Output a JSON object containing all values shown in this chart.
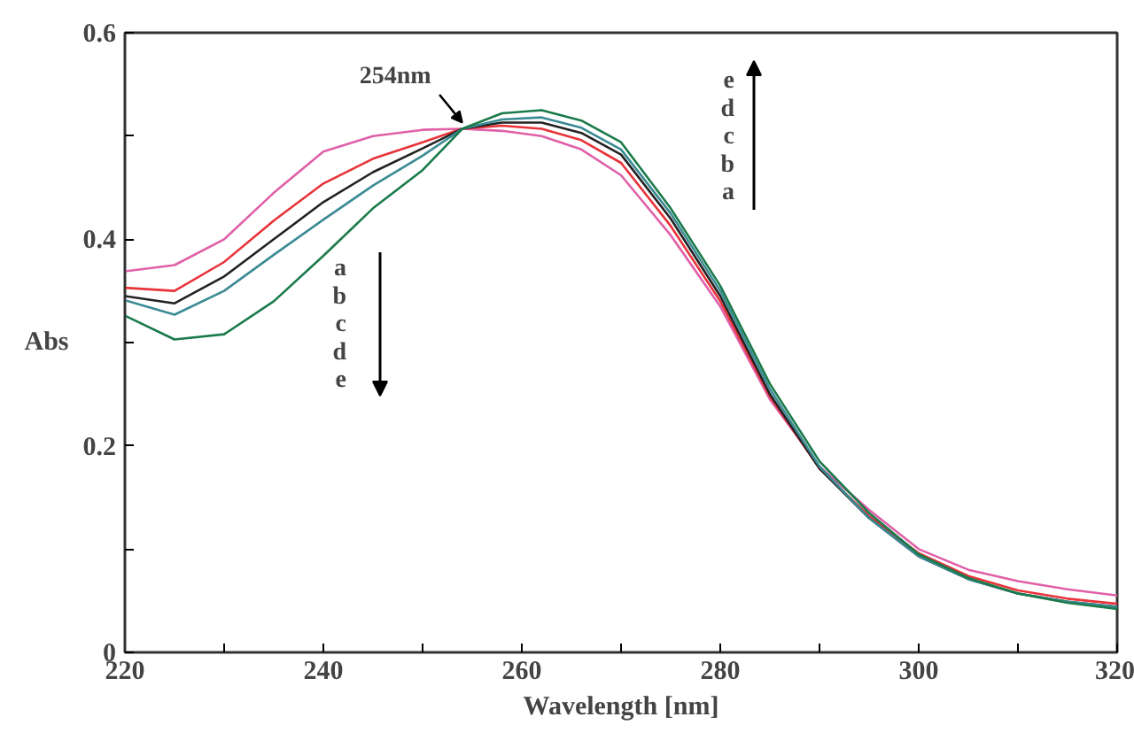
{
  "chart_data": {
    "type": "line",
    "xlabel": "Wavelength [nm]",
    "ylabel": "Abs",
    "x": [
      220,
      225,
      230,
      235,
      240,
      245,
      250,
      254,
      258,
      262,
      266,
      270,
      275,
      280,
      285,
      290,
      295,
      300,
      305,
      310,
      315,
      320
    ],
    "series": [
      {
        "color": "#e060a8",
        "values": [
          0.369,
          0.375,
          0.4,
          0.445,
          0.485,
          0.5,
          0.506,
          0.507,
          0.505,
          0.5,
          0.487,
          0.462,
          0.404,
          0.335,
          0.245,
          0.18,
          0.138,
          0.1,
          0.08,
          0.069,
          0.061,
          0.055
        ]
      },
      {
        "color": "#e8333a",
        "values": [
          0.353,
          0.35,
          0.378,
          0.418,
          0.454,
          0.478,
          0.494,
          0.507,
          0.51,
          0.507,
          0.496,
          0.474,
          0.413,
          0.34,
          0.248,
          0.178,
          0.132,
          0.096,
          0.074,
          0.06,
          0.052,
          0.047
        ]
      },
      {
        "color": "#222222",
        "values": [
          0.345,
          0.338,
          0.364,
          0.4,
          0.436,
          0.465,
          0.488,
          0.507,
          0.513,
          0.513,
          0.503,
          0.482,
          0.42,
          0.345,
          0.25,
          0.178,
          0.13,
          0.093,
          0.071,
          0.057,
          0.049,
          0.044
        ]
      },
      {
        "color": "#3a8a94",
        "values": [
          0.341,
          0.327,
          0.35,
          0.385,
          0.419,
          0.452,
          0.481,
          0.507,
          0.516,
          0.518,
          0.508,
          0.487,
          0.425,
          0.35,
          0.255,
          0.18,
          0.13,
          0.093,
          0.071,
          0.057,
          0.049,
          0.044
        ]
      },
      {
        "color": "#1a7a4a",
        "values": [
          0.326,
          0.303,
          0.308,
          0.34,
          0.384,
          0.43,
          0.467,
          0.507,
          0.522,
          0.525,
          0.515,
          0.494,
          0.43,
          0.355,
          0.26,
          0.185,
          0.135,
          0.095,
          0.072,
          0.057,
          0.048,
          0.042
        ]
      }
    ],
    "xlim": [
      220,
      320
    ],
    "xticks": [
      220,
      {
        "value": 230,
        "label": null
      },
      240,
      {
        "value": 250,
        "label": null
      },
      260,
      {
        "value": 270,
        "label": null
      },
      280,
      {
        "value": 290,
        "label": null
      },
      300,
      {
        "value": 310,
        "label": null
      },
      320
    ],
    "ylim": [
      0,
      0.6
    ],
    "yticks": [
      0,
      {
        "value": 0.1,
        "label": null
      },
      0.2,
      {
        "value": 0.3,
        "label": null
      },
      0.4,
      {
        "value": 0.5,
        "label": null
      },
      0.6
    ],
    "annotations": [
      {
        "text": "254nm",
        "x": 254,
        "y": 0.507
      },
      "a\nb\nc\nd\ne",
      "e\nd\nc\nb\na"
    ],
    "grid": false,
    "legend": false,
    "marker": "none",
    "line_style": "solid"
  }
}
